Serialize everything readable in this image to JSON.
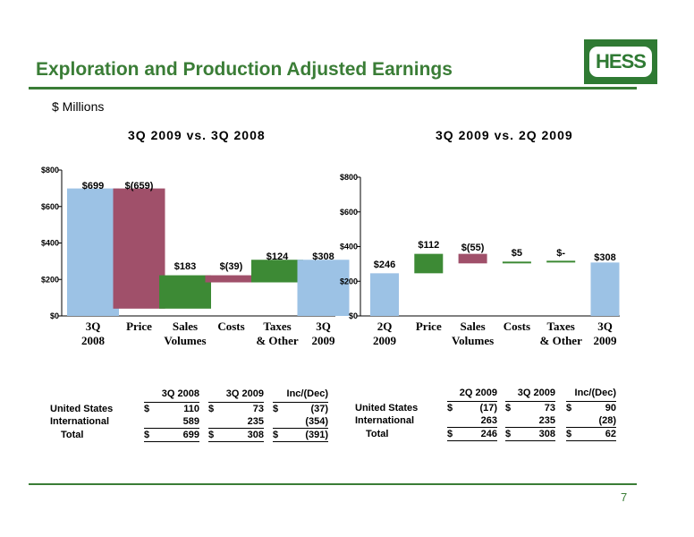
{
  "page": {
    "title": "Exploration and Production Adjusted Earnings",
    "subtitle": "$ Millions",
    "logo_text": "HESS",
    "page_number": "7",
    "accent_color": "#3a7d36"
  },
  "chart_data": [
    {
      "type": "bar",
      "title": "3Q 2009 vs. 3Q 2008",
      "categories": [
        "3Q 2008",
        "Price",
        "Sales Volumes",
        "Costs",
        "Taxes & Other",
        "3Q 2009"
      ],
      "bar_kind": [
        "total",
        "delta",
        "delta",
        "delta",
        "delta",
        "total"
      ],
      "values": [
        699,
        -659,
        183,
        -39,
        124,
        308
      ],
      "data_labels": [
        "$699",
        "$(659)",
        "$183",
        "$(39)",
        "$124",
        "$308"
      ],
      "yticks": [
        "$0",
        "$200",
        "$400",
        "$600",
        "$800"
      ],
      "ylim": [
        0,
        800
      ],
      "colors": {
        "total": "#9cc2e5",
        "increase": "#3d8a35",
        "decrease": "#a0506a"
      }
    },
    {
      "type": "bar",
      "title": "3Q 2009 vs. 2Q 2009",
      "categories": [
        "2Q 2009",
        "Price",
        "Sales Volumes",
        "Costs",
        "Taxes & Other",
        "3Q 2009"
      ],
      "bar_kind": [
        "total",
        "delta",
        "delta",
        "delta",
        "delta",
        "total"
      ],
      "values": [
        246,
        112,
        -55,
        5,
        0,
        308
      ],
      "data_labels": [
        "$246",
        "$112",
        "$(55)",
        "$5",
        "$-",
        "$308"
      ],
      "yticks": [
        "$0",
        "$200",
        "$400",
        "$600",
        "$800"
      ],
      "ylim": [
        0,
        800
      ],
      "colors": {
        "total": "#9cc2e5",
        "increase": "#3d8a35",
        "decrease": "#a0506a"
      }
    }
  ],
  "tables": [
    {
      "columns": [
        "3Q 2008",
        "3Q 2009",
        "Inc/(Dec)"
      ],
      "rows": [
        {
          "label": "United States",
          "c1_sym": "$",
          "c1": "110",
          "c2_sym": "$",
          "c2": "73",
          "c3_sym": "$",
          "c3": "(37)"
        },
        {
          "label": "International",
          "c1_sym": "",
          "c1": "589",
          "c2_sym": "",
          "c2": "235",
          "c3_sym": "",
          "c3": "(354)"
        },
        {
          "label": "Total",
          "c1_sym": "$",
          "c1": "699",
          "c2_sym": "$",
          "c2": "308",
          "c3_sym": "$",
          "c3": "(391)"
        }
      ]
    },
    {
      "columns": [
        "2Q 2009",
        "3Q 2009",
        "Inc/(Dec)"
      ],
      "rows": [
        {
          "label": "United States",
          "c1_sym": "$",
          "c1": "(17)",
          "c2_sym": "$",
          "c2": "73",
          "c3_sym": "$",
          "c3": "90"
        },
        {
          "label": "International",
          "c1_sym": "",
          "c1": "263",
          "c2_sym": "",
          "c2": "235",
          "c3_sym": "",
          "c3": "(28)"
        },
        {
          "label": "Total",
          "c1_sym": "$",
          "c1": "246",
          "c2_sym": "$",
          "c2": "308",
          "c3_sym": "$",
          "c3": "62"
        }
      ]
    }
  ]
}
